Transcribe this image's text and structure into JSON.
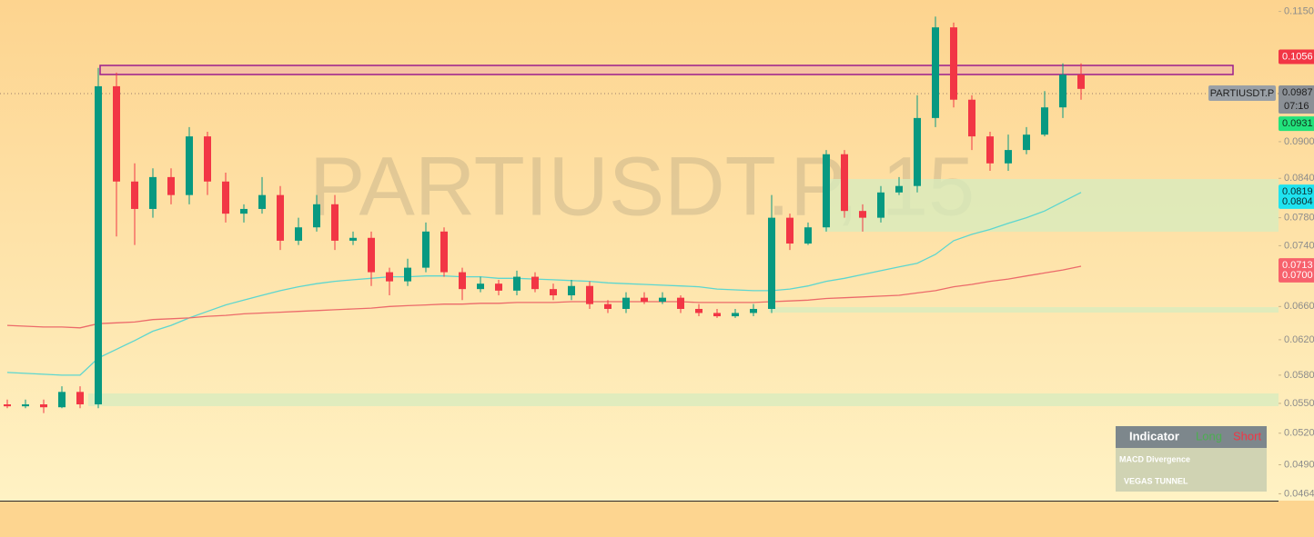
{
  "watermark": "PARTIUSDT.P, 15",
  "symbol_label": "PARTIUSDT.P",
  "chart_data": {
    "type": "candlestick",
    "log_scale": true,
    "up_color": "#089981",
    "down_color": "#f23645",
    "open": [
      0.0549,
      0.0547,
      0.0549,
      0.0546,
      0.0562,
      0.0549,
      0.0999,
      0.0835,
      0.0793,
      0.0842,
      0.0814,
      0.0909,
      0.0835,
      0.0786,
      0.0793,
      0.0814,
      0.0747,
      0.0766,
      0.08,
      0.0747,
      0.0751,
      0.0704,
      0.0692,
      0.071,
      0.076,
      0.0704,
      0.0682,
      0.0689,
      0.068,
      0.0698,
      0.0682,
      0.0674,
      0.0686,
      0.0663,
      0.0657,
      0.0671,
      0.0666,
      0.0671,
      0.0657,
      0.0652,
      0.0648,
      0.0652,
      0.0657,
      0.078,
      0.0743,
      0.0766,
      0.0879,
      0.079,
      0.078,
      0.0818,
      0.0828,
      0.0941,
      0.1116,
      0.0974,
      0.0909,
      0.0864,
      0.0886,
      0.0912,
      0.096,
      0.1021
    ],
    "high": [
      0.0554,
      0.0554,
      0.0554,
      0.0568,
      0.0568,
      0.1034,
      0.1025,
      0.0864,
      0.0856,
      0.0856,
      0.0925,
      0.0917,
      0.0849,
      0.08,
      0.0842,
      0.0828,
      0.078,
      0.0814,
      0.0814,
      0.076,
      0.076,
      0.071,
      0.0722,
      0.0773,
      0.0766,
      0.071,
      0.0698,
      0.0694,
      0.0706,
      0.0704,
      0.0689,
      0.0694,
      0.0692,
      0.0668,
      0.0678,
      0.0678,
      0.0678,
      0.0674,
      0.0663,
      0.0657,
      0.0657,
      0.0663,
      0.0814,
      0.0786,
      0.0773,
      0.0886,
      0.0886,
      0.08,
      0.0828,
      0.0842,
      0.0982,
      0.1139,
      0.1126,
      0.0982,
      0.0917,
      0.0912,
      0.0925,
      0.099,
      0.1043,
      0.1043
    ],
    "low": [
      0.0545,
      0.0545,
      0.054,
      0.0545,
      0.0545,
      0.0545,
      0.0753,
      0.0741,
      0.078,
      0.08,
      0.08,
      0.0814,
      0.0773,
      0.0773,
      0.0786,
      0.0734,
      0.0741,
      0.076,
      0.0734,
      0.0741,
      0.0686,
      0.0674,
      0.0686,
      0.0704,
      0.0698,
      0.0668,
      0.0678,
      0.0674,
      0.0674,
      0.0678,
      0.0668,
      0.0668,
      0.0657,
      0.0652,
      0.0652,
      0.0663,
      0.0663,
      0.0652,
      0.0648,
      0.0646,
      0.0646,
      0.0648,
      0.0652,
      0.0734,
      0.0741,
      0.076,
      0.078,
      0.076,
      0.0773,
      0.0814,
      0.0818,
      0.0925,
      0.096,
      0.0886,
      0.0852,
      0.0852,
      0.0879,
      0.0909,
      0.0941,
      0.0974
    ],
    "close": [
      0.0547,
      0.0549,
      0.0546,
      0.0562,
      0.0549,
      0.0999,
      0.0835,
      0.0793,
      0.0842,
      0.0814,
      0.0909,
      0.0835,
      0.0786,
      0.0793,
      0.0814,
      0.0747,
      0.0766,
      0.08,
      0.0747,
      0.0751,
      0.0704,
      0.0692,
      0.071,
      0.076,
      0.0704,
      0.0682,
      0.0689,
      0.068,
      0.0698,
      0.0682,
      0.0674,
      0.0686,
      0.0663,
      0.0657,
      0.0671,
      0.0666,
      0.0671,
      0.0657,
      0.0652,
      0.0648,
      0.0652,
      0.0657,
      0.078,
      0.0743,
      0.0766,
      0.0879,
      0.079,
      0.078,
      0.0818,
      0.0828,
      0.0941,
      0.1116,
      0.0974,
      0.0909,
      0.0864,
      0.0886,
      0.0912,
      0.096,
      0.1021,
      0.0994
    ],
    "series": [
      {
        "color": "#5cd6cf",
        "values": [
          0.0583,
          0.0582,
          0.0581,
          0.058,
          0.058,
          0.0599,
          0.0609,
          0.0619,
          0.063,
          0.0637,
          0.0646,
          0.0654,
          0.0662,
          0.0668,
          0.0674,
          0.068,
          0.0685,
          0.0689,
          0.0692,
          0.0694,
          0.0696,
          0.0698,
          0.0698,
          0.0699,
          0.0699,
          0.0698,
          0.0698,
          0.0696,
          0.0696,
          0.0695,
          0.0694,
          0.0693,
          0.0692,
          0.069,
          0.0689,
          0.0688,
          0.0687,
          0.0686,
          0.0685,
          0.0682,
          0.0681,
          0.068,
          0.068,
          0.0682,
          0.0686,
          0.0692,
          0.0696,
          0.0701,
          0.0706,
          0.0711,
          0.0716,
          0.0728,
          0.0747,
          0.0756,
          0.0763,
          0.0772,
          0.078,
          0.079,
          0.0804,
          0.0818
        ]
      },
      {
        "color": "#ec6a6a",
        "values": [
          0.0637,
          0.0636,
          0.0635,
          0.0635,
          0.0634,
          0.0639,
          0.064,
          0.0641,
          0.0644,
          0.0645,
          0.0646,
          0.0648,
          0.0649,
          0.0651,
          0.0652,
          0.0653,
          0.0654,
          0.0655,
          0.0656,
          0.0657,
          0.0658,
          0.066,
          0.0661,
          0.0662,
          0.0663,
          0.0663,
          0.0664,
          0.0664,
          0.0665,
          0.0665,
          0.0665,
          0.0666,
          0.0666,
          0.0666,
          0.0666,
          0.0666,
          0.0666,
          0.0666,
          0.0665,
          0.0665,
          0.0665,
          0.0665,
          0.0666,
          0.0667,
          0.0668,
          0.067,
          0.0671,
          0.0672,
          0.0673,
          0.0674,
          0.0677,
          0.068,
          0.0685,
          0.0688,
          0.0692,
          0.0695,
          0.0699,
          0.0703,
          0.0707,
          0.0712
        ]
      }
    ],
    "ylim": [
      0.0458,
      0.1175
    ],
    "yticks": [
      {
        "value": 0.115,
        "label": "0.1150"
      },
      {
        "value": 0.09,
        "label": "0.0900"
      },
      {
        "value": 0.084,
        "label": "0.0840"
      },
      {
        "value": 0.078,
        "label": "0.0780"
      },
      {
        "value": 0.074,
        "label": "0.0740"
      },
      {
        "value": 0.066,
        "label": "0.0660"
      },
      {
        "value": 0.062,
        "label": "0.0620"
      },
      {
        "value": 0.058,
        "label": "0.0580"
      },
      {
        "value": 0.055,
        "label": "0.0550"
      },
      {
        "value": 0.052,
        "label": "0.0520"
      },
      {
        "value": 0.049,
        "label": "0.0490"
      },
      0.0464
    ],
    "price_tags": [
      {
        "value": 0.1056,
        "color": "#f23645",
        "text_color": "#ffffff"
      },
      {
        "value": 0.0987,
        "countdown": "07:16",
        "color": "#8b9096",
        "text_color": "#1e1e1e"
      },
      {
        "value": 0.0931,
        "color": "#22e27c",
        "text_color": "#10301c"
      },
      {
        "value": 0.0819,
        "color": "#1fe3f0",
        "text_color": "#0d2a2c"
      },
      {
        "value": 0.0804,
        "color": "#1fe3f0",
        "text_color": "#0d2a2c"
      },
      {
        "value": 0.0713,
        "color": "#f7616c",
        "text_color": "#ffffff"
      },
      {
        "value": 0.07,
        "label": "0.0700",
        "color": "#f7616c",
        "text_color": "#ffffff"
      }
    ]
  },
  "indicator_panel": {
    "title": "Indicator",
    "long": "Long",
    "short": "Short",
    "rows": [
      "MACD Divergence",
      "VEGAS TUNNEL"
    ]
  }
}
